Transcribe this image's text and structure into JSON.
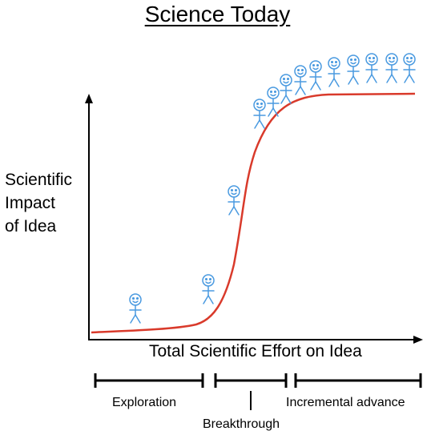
{
  "title": "Science Today",
  "y_axis_label": "Scientific\nImpact\nof Idea",
  "x_axis_label": "Total Scientific Effort on Idea",
  "phases": [
    {
      "label": "Exploration"
    },
    {
      "label": "Breakthrough"
    },
    {
      "label": "Incremental advance"
    }
  ],
  "colors": {
    "curve": "#d93a2b",
    "figure": "#4a9ae0",
    "axis": "#000000",
    "text": "#000000"
  },
  "icons": {
    "figure": "stick-figure-icon"
  }
}
